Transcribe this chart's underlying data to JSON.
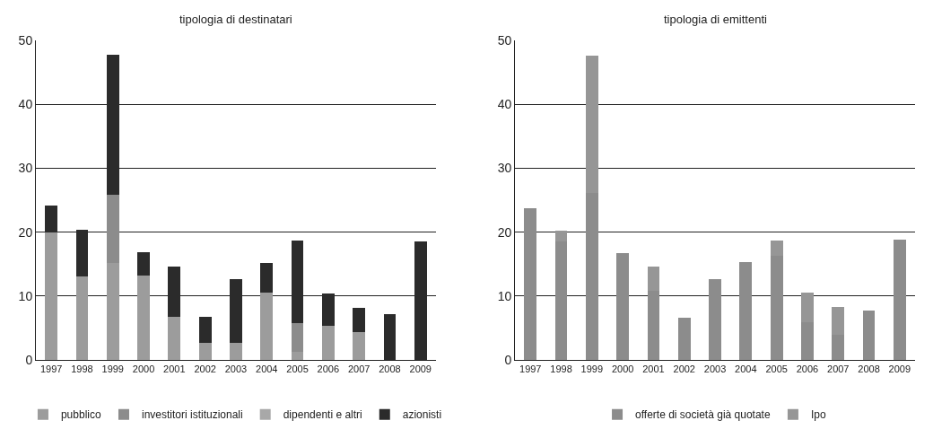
{
  "chart_data": [
    {
      "type": "bar",
      "stacked": true,
      "title": "tipologia di destinatari",
      "categories": [
        "1997",
        "1998",
        "1999",
        "2000",
        "2001",
        "2002",
        "2003",
        "2004",
        "2005",
        "2006",
        "2007",
        "2008",
        "2009"
      ],
      "series": [
        {
          "name": "pubblico",
          "color": "#9c9c9c",
          "values": [
            19.9,
            13.1,
            15.1,
            13.2,
            6.8,
            2.7,
            2.6,
            10.5,
            1.2,
            5.3,
            4.3,
            0,
            0
          ]
        },
        {
          "name": "investitori istituzionali",
          "color": "#8c8c8c",
          "values": [
            0,
            0,
            10.8,
            0,
            0,
            0,
            0,
            0,
            4.6,
            0,
            0,
            0,
            0
          ]
        },
        {
          "name": "dipendenti e altri",
          "color": "#a8a8a8",
          "values": [
            0,
            0,
            0,
            0,
            0,
            0,
            0,
            0,
            0,
            0,
            0,
            0,
            0
          ]
        },
        {
          "name": "azionisti",
          "color": "#2b2b2b",
          "values": [
            4.2,
            7.3,
            21.8,
            3.6,
            7.8,
            4.0,
            10.1,
            4.7,
            12.9,
            5.1,
            3.9,
            7.2,
            18.6
          ]
        }
      ],
      "ylim": [
        0,
        50
      ],
      "yticks": [
        0,
        10,
        20,
        30,
        40,
        50
      ],
      "grid": "y",
      "legend": "bottom"
    },
    {
      "type": "bar",
      "stacked": true,
      "title": "tipologia di emittenti",
      "categories": [
        "1997",
        "1998",
        "1999",
        "2000",
        "2001",
        "2002",
        "2003",
        "2004",
        "2005",
        "2006",
        "2007",
        "2008",
        "2009"
      ],
      "series": [
        {
          "name": "offerte di società già quotate",
          "color": "#8c8c8c",
          "values": [
            23.8,
            18.6,
            26.1,
            16.7,
            10.8,
            6.6,
            12.7,
            15.3,
            16.3,
            5.9,
            4.0,
            7.7,
            18.8
          ]
        },
        {
          "name": "Ipo",
          "color": "#969696",
          "values": [
            0,
            1.6,
            21.5,
            0,
            3.8,
            0,
            0,
            0,
            2.4,
            4.6,
            4.3,
            0,
            0
          ]
        }
      ],
      "ylim": [
        0,
        50
      ],
      "yticks": [
        0,
        10,
        20,
        30,
        40,
        50
      ],
      "grid": "y",
      "legend": "bottom"
    }
  ]
}
